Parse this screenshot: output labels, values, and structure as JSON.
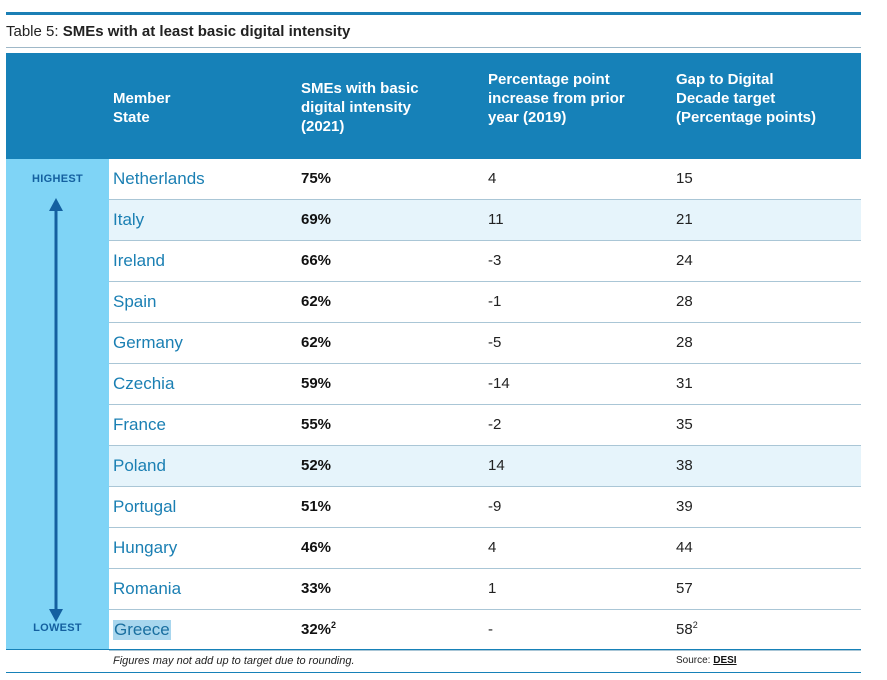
{
  "caption": {
    "prefix": "Table 5: ",
    "title": "SMEs with at least basic digital intensity"
  },
  "header": {
    "col1": "Member\nState",
    "col2": "SMEs with basic\ndigital intensity\n(2021)",
    "col3": "Percentage point\nincrease from prior\nyear (2019)",
    "col4": "Gap to Digital\nDecade target\n(Percentage points)"
  },
  "side": {
    "top_label": "HIGHEST",
    "bottom_label": "LOWEST"
  },
  "rows": [
    {
      "state": "Netherlands",
      "pct": "75%",
      "inc": "4",
      "gap": "15"
    },
    {
      "state": "Italy",
      "pct": "69%",
      "inc": "11",
      "gap": "21"
    },
    {
      "state": "Ireland",
      "pct": "66%",
      "inc": "-3",
      "gap": "24"
    },
    {
      "state": "Spain",
      "pct": "62%",
      "inc": "-1",
      "gap": "28"
    },
    {
      "state": "Germany",
      "pct": "62%",
      "inc": "-5",
      "gap": "28"
    },
    {
      "state": "Czechia",
      "pct": "59%",
      "inc": "-14",
      "gap": "31"
    },
    {
      "state": "France",
      "pct": "55%",
      "inc": "-2",
      "gap": "35"
    },
    {
      "state": "Poland",
      "pct": "52%",
      "inc": "14",
      "gap": "38"
    },
    {
      "state": "Portugal",
      "pct": "51%",
      "inc": "-9",
      "gap": "39"
    },
    {
      "state": "Hungary",
      "pct": "46%",
      "inc": "4",
      "gap": "44"
    },
    {
      "state": "Romania",
      "pct": "33%",
      "inc": "1",
      "gap": "57"
    },
    {
      "state": "Greece",
      "pct": "32%",
      "pct_sup": "2",
      "inc": "-",
      "gap": "58",
      "gap_sup": "2"
    }
  ],
  "footer": {
    "note": "Figures may not add up to target due to rounding.",
    "source_label": "Source: ",
    "source_link": "DESI"
  },
  "colors": {
    "header_bg": "#1681b8",
    "side_bg": "#7fd4f6",
    "state_text": "#1a7fb3",
    "row_highlight": "#e6f4fb"
  }
}
